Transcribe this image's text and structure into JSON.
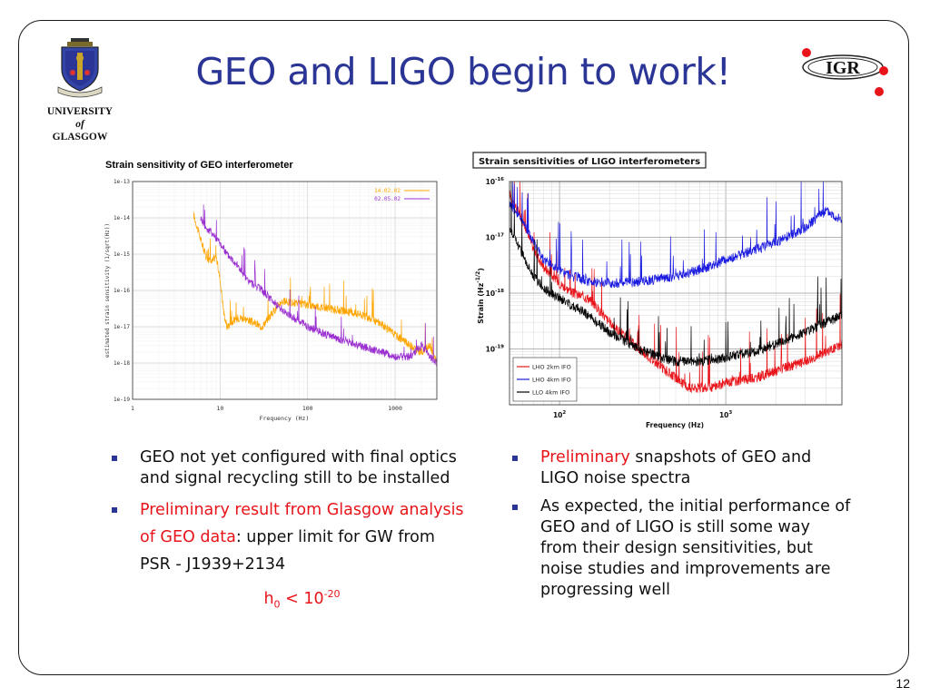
{
  "slide": {
    "title": "GEO and LIGO begin to work!",
    "page_number": "12",
    "university": {
      "line1": "UNIVERSITY",
      "line2": "of",
      "line3": "GLASGOW"
    },
    "igr_logo_text": "IGR"
  },
  "colors": {
    "title": "#2b3596",
    "accent_red": "#e8141a",
    "bullet": "#2b3596"
  },
  "left_bullets": {
    "item1": "GEO not yet configured with final optics and signal recycling still to be installed",
    "item2_red": "Preliminary result from Glasgow analysis of GEO data",
    "item2_rest": ": upper limit for GW from PSR - J1939+2134",
    "formula_h": "h",
    "formula_sub": "0",
    "formula_mid": " < 10",
    "formula_sup": "-20"
  },
  "right_bullets": {
    "item1_red": "Preliminary",
    "item1_rest": " snapshots of GEO and LIGO noise spectra",
    "item2": "As expected, the initial performance of GEO and of LIGO is still some way from their design sensitivities, but noise studies and improvements are progressing well"
  },
  "chart_data": [
    {
      "type": "line",
      "title": "Strain sensitivity of GEO interferometer",
      "xlabel": "Frequency (Hz)",
      "ylabel": "estimated strain sensitivity (1/sqrt(Hz))",
      "xscale": "log",
      "yscale": "log",
      "xlim": [
        1,
        3000
      ],
      "ylim": [
        1e-19,
        1e-13
      ],
      "xticks": [
        "1",
        "10",
        "100",
        "1000"
      ],
      "yticks": [
        "1e-13",
        "1e-14",
        "1e-15",
        "1e-16",
        "1e-17",
        "1e-18",
        "1e-19"
      ],
      "legend_position": "top-right",
      "grid": true,
      "series": [
        {
          "name": "14.02.02",
          "color": "#ffa500",
          "x": [
            5,
            6,
            7,
            8,
            9,
            10,
            11,
            12,
            14,
            17,
            20,
            30,
            50,
            100,
            200,
            400,
            700,
            1000,
            1500,
            2000,
            2500,
            3000
          ],
          "y": [
            1.2e-14,
            2.5e-15,
            8e-16,
            6e-16,
            9e-16,
            2e-16,
            2.5e-17,
            1e-17,
            1.4e-17,
            1.8e-17,
            1.6e-17,
            1e-17,
            5e-17,
            4e-17,
            3e-17,
            2.2e-17,
            1.2e-17,
            6e-18,
            3e-18,
            2e-18,
            3e-18,
            1e-18
          ]
        },
        {
          "name": "02.05.02",
          "color": "#9b30d0",
          "x": [
            6,
            7,
            8,
            10,
            12,
            15,
            20,
            30,
            50,
            100,
            200,
            400,
            700,
            1000,
            1500,
            2000,
            2500,
            3000
          ],
          "y": [
            1e-14,
            5e-15,
            4e-15,
            2e-15,
            1e-15,
            6e-16,
            2e-16,
            1e-16,
            3e-17,
            1e-17,
            5e-18,
            3e-18,
            2e-18,
            1.5e-18,
            1.5e-18,
            3e-18,
            1.5e-18,
            1e-18
          ]
        }
      ]
    },
    {
      "type": "line",
      "title": "Strain sensitivities of LIGO interferometers",
      "xlabel": "Frequency (Hz)",
      "ylabel": "Strain (Hz",
      "ylabel_sup": "-1/2",
      "ylabel_close": ")",
      "xscale": "log",
      "yscale": "log",
      "xlim": [
        50,
        5000
      ],
      "ylim": [
        1e-20,
        1e-16
      ],
      "xticks": [
        {
          "base": "10",
          "exp": "2"
        },
        {
          "base": "10",
          "exp": "3"
        }
      ],
      "yticks": [
        {
          "base": "10",
          "exp": "-16"
        },
        {
          "base": "10",
          "exp": "-17"
        },
        {
          "base": "10",
          "exp": "-18"
        },
        {
          "base": "10",
          "exp": "-19"
        }
      ],
      "legend_position": "bottom-left",
      "grid": true,
      "series": [
        {
          "name": "LHO 2km IFO",
          "color": "#e8141a",
          "x": [
            50,
            60,
            70,
            80,
            100,
            120,
            150,
            200,
            300,
            400,
            500,
            600,
            800,
            1000,
            1500,
            2000,
            3000,
            5000
          ],
          "y": [
            6e-17,
            2e-17,
            6e-18,
            3e-18,
            1.5e-18,
            1e-18,
            8e-19,
            3e-19,
            1e-19,
            5e-20,
            3e-20,
            2e-20,
            2e-20,
            2.5e-20,
            3e-20,
            4e-20,
            6e-20,
            1.2e-19
          ]
        },
        {
          "name": "LHO 4km IFO",
          "color": "#1a1ae0",
          "x": [
            50,
            60,
            70,
            80,
            100,
            120,
            150,
            200,
            300,
            500,
            800,
            1000,
            2000,
            3000,
            4000,
            5000
          ],
          "y": [
            4e-17,
            2e-17,
            8e-18,
            4e-18,
            2.5e-18,
            2e-18,
            1.6e-18,
            1.5e-18,
            1.6e-18,
            2e-18,
            3e-18,
            4e-18,
            8e-18,
            1.5e-17,
            3e-17,
            2e-17
          ]
        },
        {
          "name": "LLO 4km IFO",
          "color": "#000000",
          "x": [
            50,
            60,
            70,
            80,
            100,
            120,
            150,
            200,
            300,
            400,
            500,
            700,
            1000,
            1500,
            2000,
            3000,
            5000
          ],
          "y": [
            1.5e-17,
            5e-18,
            2e-18,
            1.2e-18,
            8e-19,
            6e-19,
            4e-19,
            2e-19,
            1e-19,
            7e-20,
            6e-20,
            6e-20,
            7e-20,
            9e-20,
            1.2e-19,
            2e-19,
            4e-19
          ]
        }
      ]
    }
  ]
}
